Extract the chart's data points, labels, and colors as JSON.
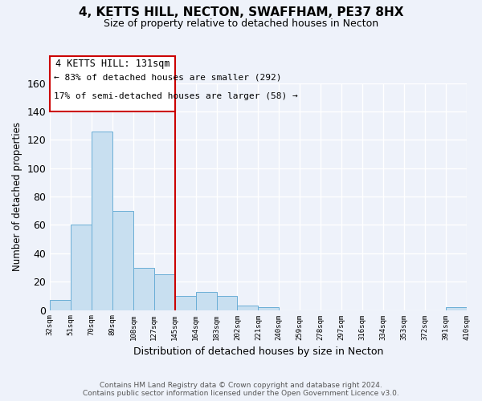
{
  "title": "4, KETTS HILL, NECTON, SWAFFHAM, PE37 8HX",
  "subtitle": "Size of property relative to detached houses in Necton",
  "xlabel": "Distribution of detached houses by size in Necton",
  "ylabel": "Number of detached properties",
  "bar_color": "#c8dff0",
  "bar_edge_color": "#6aaed6",
  "background_color": "#eef2fa",
  "annotation_border_color": "#cc0000",
  "vline_color": "#cc0000",
  "vline_x_index": 6,
  "annotation_title": "4 KETTS HILL: 131sqm",
  "annotation_line1": "← 83% of detached houses are smaller (292)",
  "annotation_line2": "17% of semi-detached houses are larger (58) →",
  "counts": [
    7,
    60,
    126,
    70,
    30,
    25,
    10,
    13,
    10,
    3,
    2,
    0,
    0,
    0,
    0,
    0,
    0,
    0,
    0,
    2
  ],
  "tick_labels": [
    "32sqm",
    "51sqm",
    "70sqm",
    "89sqm",
    "108sqm",
    "127sqm",
    "145sqm",
    "164sqm",
    "183sqm",
    "202sqm",
    "221sqm",
    "240sqm",
    "259sqm",
    "278sqm",
    "297sqm",
    "316sqm",
    "334sqm",
    "353sqm",
    "372sqm",
    "391sqm",
    "410sqm"
  ],
  "ylim": [
    0,
    160
  ],
  "yticks": [
    0,
    20,
    40,
    60,
    80,
    100,
    120,
    140,
    160
  ],
  "footer_line1": "Contains HM Land Registry data © Crown copyright and database right 2024.",
  "footer_line2": "Contains public sector information licensed under the Open Government Licence v3.0."
}
